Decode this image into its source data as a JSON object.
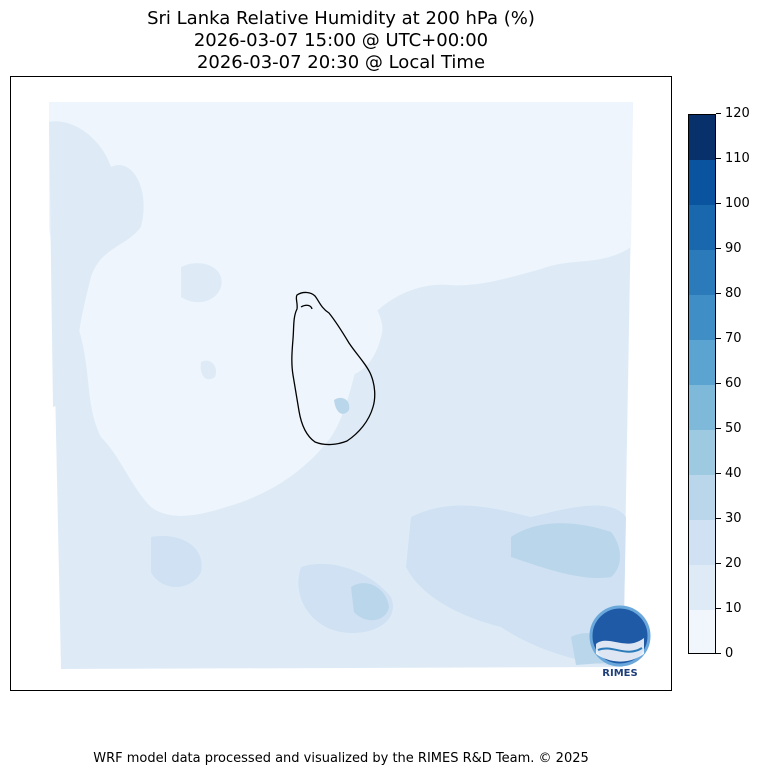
{
  "title": {
    "line1": "Sri Lanka Relative Humidity at 200 hPa (%)",
    "line2": "2026-03-07 15:00 @ UTC+00:00",
    "line3": "2026-03-07 20:30 @ Local Time"
  },
  "colorbar": {
    "levels": [
      0,
      10,
      20,
      30,
      40,
      50,
      60,
      70,
      80,
      90,
      100,
      110,
      120
    ],
    "labels": [
      "0",
      "10",
      "20",
      "30",
      "40",
      "50",
      "60",
      "70",
      "80",
      "90",
      "100",
      "110",
      "120"
    ],
    "colors": [
      "#f0f6fc",
      "#deebf7",
      "#cfe1f2",
      "#bad6eb",
      "#9ecae1",
      "#7fb9da",
      "#5ba3d0",
      "#3f8ec5",
      "#2b7bba",
      "#1967ad",
      "#0a539e",
      "#08306b"
    ]
  },
  "map": {
    "dominant_level_range": "10-20",
    "logo_text": "RIMES"
  },
  "footer": "WRF model data processed and visualized by the RIMES R&D Team. © 2025"
}
